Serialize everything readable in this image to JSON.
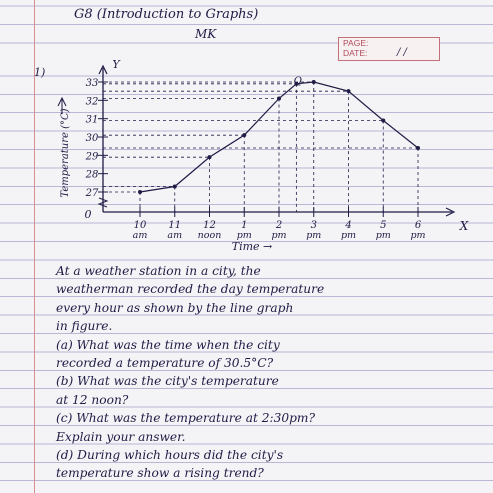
{
  "header": {
    "title": "G8 (Introduction to Graphs)",
    "author_initials": "MK",
    "page_label": "PAGE:",
    "date_label": "DATE:",
    "date_value": "/ /"
  },
  "question_number": "1)",
  "chart_data": {
    "type": "line",
    "xlabel": "Time →",
    "ylabel": "Temperature (°C)",
    "x_ticks": [
      {
        "value": "10",
        "sub": "am"
      },
      {
        "value": "11",
        "sub": "am"
      },
      {
        "value": "12",
        "sub": "noon"
      },
      {
        "value": "1",
        "sub": "pm"
      },
      {
        "value": "2",
        "sub": "pm"
      },
      {
        "value": "3",
        "sub": "pm"
      },
      {
        "value": "4",
        "sub": "pm"
      },
      {
        "value": "5",
        "sub": "pm"
      },
      {
        "value": "6",
        "sub": "pm"
      }
    ],
    "y_ticks": [
      "27",
      "28",
      "29",
      "30",
      "31",
      "32",
      "33"
    ],
    "origin_label": "0",
    "axis_x_letter": "X",
    "axis_y_letter": "Y",
    "point_label": "Q",
    "x": [
      10,
      11,
      12,
      13,
      14,
      14.5,
      15,
      16,
      17,
      18
    ],
    "y": [
      27,
      27.3,
      28.9,
      30.1,
      32.1,
      32.9,
      33,
      32.5,
      30.9,
      29.4
    ],
    "ylim": [
      27,
      33
    ],
    "xlim": [
      10,
      18
    ],
    "grid": false
  },
  "question_lines": [
    "At a weather station in a city, the",
    "weatherman recorded the day temperature",
    "every hour as shown by the line graph",
    "in figure.",
    "(a) What was the time when the city",
    "recorded a temperature of 30.5°C?",
    "(b) What was the city's temperature",
    "at 12 noon?",
    "(c) What was the temperature at 2:30pm?",
    "Explain your answer.",
    "(d) During which hours did the city's",
    "temperature show a rising trend?"
  ],
  "colors": {
    "ink": "#1f1c45",
    "ruling": "#b9b7d4",
    "margin": "#d98f8f"
  }
}
